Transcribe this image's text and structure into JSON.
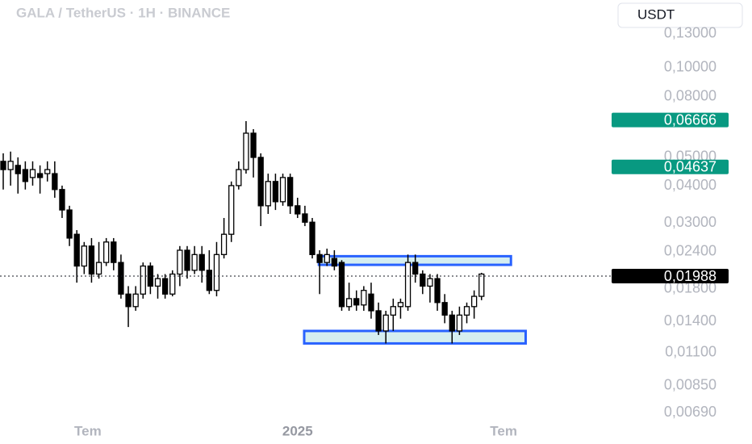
{
  "chart_data": {
    "type": "candlestick",
    "title": "GALA / TetherUS · 1H · BINANCE",
    "currency": "USDT",
    "log_scale": true,
    "ylim": [
      0.00653,
      0.169
    ],
    "xlim": [
      -0.44,
      82.9
    ],
    "yticks": [
      {
        "value": 0.13,
        "label": "0,13000"
      },
      {
        "value": 0.1,
        "label": "0,10000"
      },
      {
        "value": 0.08,
        "label": "0,08000"
      },
      {
        "value": 0.05,
        "label": "0,05000"
      },
      {
        "value": 0.04,
        "label": "0,04000"
      },
      {
        "value": 0.03,
        "label": "0,03000"
      },
      {
        "value": 0.024,
        "label": "0,02400"
      },
      {
        "value": 0.018,
        "label": "0,01800"
      },
      {
        "value": 0.014,
        "label": "0,01400"
      },
      {
        "value": 0.011,
        "label": "0,01100"
      },
      {
        "value": 0.0085,
        "label": "0,00850"
      },
      {
        "value": 0.0069,
        "label": "0,00690"
      }
    ],
    "xticks": [
      {
        "value": 11.5,
        "label": "Tem"
      },
      {
        "value": 40,
        "label": "2025"
      },
      {
        "value": 68,
        "label": "Tem"
      }
    ],
    "open": [
      0.0484,
      0.0454,
      0.0469,
      0.0454,
      0.0427,
      0.044,
      0.044,
      0.044,
      0.0389,
      0.0332,
      0.0275,
      0.0215,
      0.0251,
      0.0202,
      0.0221,
      0.0259,
      0.0221,
      0.0173,
      0.0157,
      0.0173,
      0.0215,
      0.0184,
      0.0195,
      0.0173,
      0.0202,
      0.0243,
      0.0208,
      0.0235,
      0.0208,
      0.0178,
      0.0235,
      0.0275,
      0.0401,
      0.0454,
      0.0602,
      0.0499,
      0.0343,
      0.0414,
      0.0354,
      0.0427,
      0.0343,
      0.0322,
      0.0302,
      0.0235,
      0.0221,
      0.0228,
      0.0221,
      0.0157,
      0.0167,
      0.0159,
      0.0173,
      0.0152,
      0.013,
      0.0147,
      0.0157,
      0.0157,
      0.0221,
      0.0202,
      0.0184,
      0.0195,
      0.0162,
      0.0147,
      0.013,
      0.0147,
      0.0157,
      0.017
    ],
    "high": [
      0.0515,
      0.0522,
      0.0499,
      0.0484,
      0.0484,
      0.0469,
      0.0484,
      0.0484,
      0.0401,
      0.0343,
      0.0284,
      0.0259,
      0.0267,
      0.0259,
      0.0267,
      0.0267,
      0.0235,
      0.0184,
      0.0184,
      0.0221,
      0.0221,
      0.0202,
      0.0202,
      0.0208,
      0.0251,
      0.0251,
      0.0251,
      0.0251,
      0.0243,
      0.0259,
      0.0312,
      0.0414,
      0.0484,
      0.0661,
      0.0621,
      0.0515,
      0.044,
      0.044,
      0.044,
      0.044,
      0.0365,
      0.0343,
      0.0312,
      0.0243,
      0.0246,
      0.0243,
      0.0225,
      0.0189,
      0.0178,
      0.0184,
      0.0189,
      0.0162,
      0.0152,
      0.0167,
      0.0167,
      0.0235,
      0.0235,
      0.0208,
      0.0202,
      0.0202,
      0.0173,
      0.0152,
      0.0157,
      0.0162,
      0.0178,
      0.0204
    ],
    "low": [
      0.0389,
      0.0401,
      0.0377,
      0.0389,
      0.0401,
      0.0377,
      0.0414,
      0.0365,
      0.0312,
      0.0251,
      0.0189,
      0.0202,
      0.0189,
      0.0195,
      0.0215,
      0.0208,
      0.0167,
      0.0134,
      0.0152,
      0.0167,
      0.0173,
      0.0167,
      0.0167,
      0.017,
      0.0184,
      0.0195,
      0.0202,
      0.0189,
      0.0173,
      0.017,
      0.0228,
      0.0259,
      0.0389,
      0.044,
      0.0427,
      0.0293,
      0.0322,
      0.0332,
      0.0343,
      0.0322,
      0.0312,
      0.0293,
      0.0228,
      0.0173,
      0.0215,
      0.0208,
      0.0152,
      0.0152,
      0.0152,
      0.0152,
      0.0143,
      0.0126,
      0.0118,
      0.013,
      0.0143,
      0.0152,
      0.0189,
      0.0173,
      0.0162,
      0.0152,
      0.0138,
      0.0118,
      0.0126,
      0.0138,
      0.0143,
      0.0165
    ],
    "close": [
      0.0454,
      0.0484,
      0.044,
      0.0414,
      0.0454,
      0.0427,
      0.0454,
      0.0389,
      0.0332,
      0.0267,
      0.0215,
      0.0251,
      0.0202,
      0.0221,
      0.0259,
      0.0221,
      0.0173,
      0.0157,
      0.0173,
      0.0215,
      0.0184,
      0.0195,
      0.0173,
      0.0202,
      0.0243,
      0.0208,
      0.0235,
      0.0208,
      0.0178,
      0.0235,
      0.0275,
      0.0401,
      0.0454,
      0.0602,
      0.0499,
      0.0343,
      0.0414,
      0.0354,
      0.0427,
      0.0343,
      0.0322,
      0.0302,
      0.0235,
      0.0221,
      0.0235,
      0.0215,
      0.0157,
      0.0167,
      0.0159,
      0.0178,
      0.0152,
      0.013,
      0.0147,
      0.0157,
      0.0162,
      0.0221,
      0.0202,
      0.0184,
      0.0195,
      0.0162,
      0.0147,
      0.013,
      0.0147,
      0.0157,
      0.017,
      0.0202
    ],
    "zones": [
      {
        "x": [
          42.9,
          69
        ],
        "y": [
          0.0232,
          0.0217
        ]
      },
      {
        "x": [
          40.9,
          71
        ],
        "y": [
          0.013,
          0.0118
        ]
      }
    ],
    "price_labels": [
      {
        "value": 0.06666,
        "label": "0,06666",
        "color": "#089981"
      },
      {
        "value": 0.04637,
        "label": "0,04637",
        "color": "#089981"
      },
      {
        "value": 0.01988,
        "label": "0,01988",
        "color": "#000000"
      }
    ]
  }
}
